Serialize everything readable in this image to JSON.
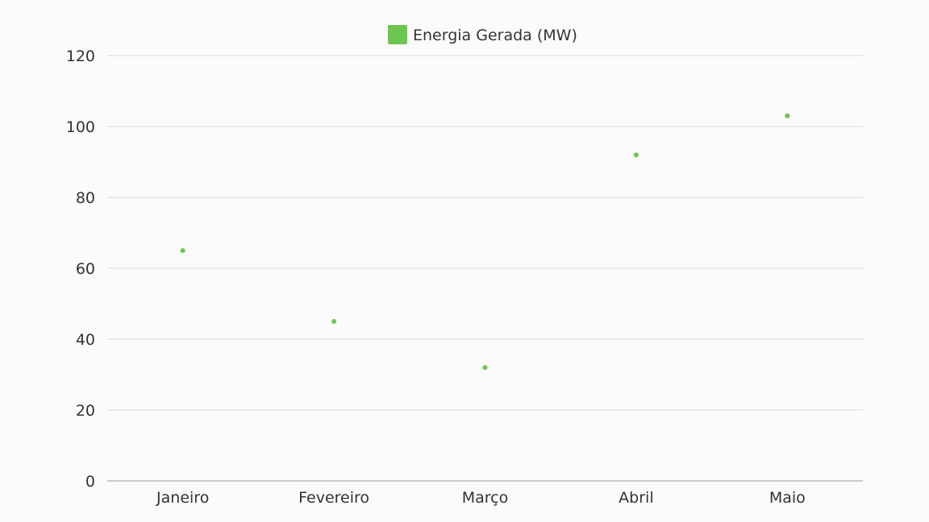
{
  "chart_data": {
    "type": "scatter",
    "title": "",
    "xlabel": "",
    "ylabel": "",
    "categories": [
      "Janeiro",
      "Fevereiro",
      "Março",
      "Abril",
      "Maio"
    ],
    "series": [
      {
        "name": "Energia Gerada (MW)",
        "color": "#6cc64f",
        "values": [
          65,
          45,
          32,
          92,
          103
        ]
      }
    ],
    "ylim": [
      0,
      120
    ],
    "yticks": [
      0,
      20,
      40,
      60,
      80,
      100,
      120
    ],
    "grid": true,
    "legend_position": "top-center"
  }
}
